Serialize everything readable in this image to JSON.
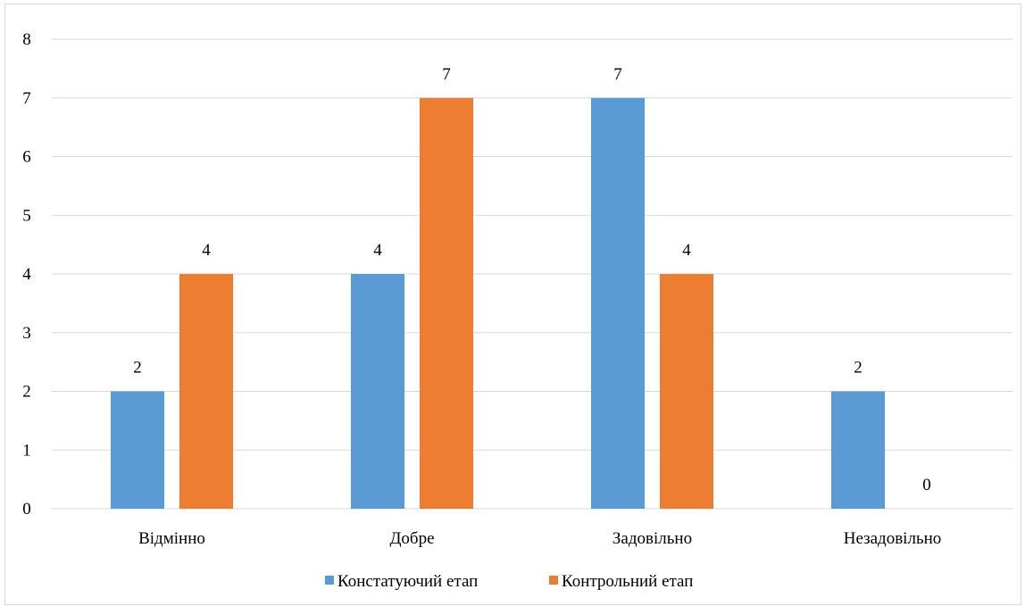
{
  "chart_data": {
    "type": "bar",
    "title": "",
    "xlabel": "",
    "ylabel": "",
    "categories": [
      "Відмінно",
      "Добре",
      "Задовільно",
      "Незадовільно"
    ],
    "series": [
      {
        "name": "Констатуючий етап",
        "values": [
          2,
          4,
          7,
          2
        ],
        "color": "#5b9bd5"
      },
      {
        "name": "Контрольний етап",
        "values": [
          4,
          7,
          4,
          0
        ],
        "color": "#ed7d31"
      }
    ],
    "ylim": [
      0,
      8
    ],
    "yticks": [
      0,
      1,
      2,
      3,
      4,
      5,
      6,
      7,
      8
    ],
    "grid": true,
    "legend": "bottom",
    "data_labels": true
  }
}
